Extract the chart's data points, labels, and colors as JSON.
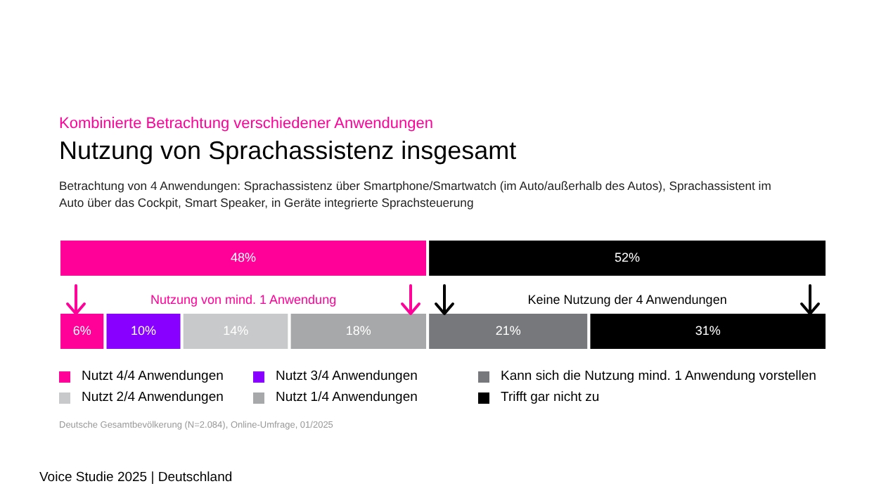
{
  "chart_data": {
    "type": "bar",
    "orientation": "horizontal",
    "stacked": true,
    "subtitle": "Kombinierte Betrachtung verschiedener Anwendungen",
    "title": "Nutzung von Sprachassistenz insgesamt",
    "annotations": [
      "Betrachtung von 4 Anwendungen: Sprachassistenz über Smartphone/Smartwatch (im Auto/außerhalb des Autos), Sprachassistent im Auto über das Cockpit, Smart Speaker, in Geräte integrierte Sprachsteuerung",
      "Nutzung von mind. 1 Anwendung",
      "Keine Nutzung der 4 Anwendungen",
      "Deutsche Gesamtbevölkerung (N=2.084), Online-Umfrage, 01/2025",
      "Voice Studie 2025 | Deutschland"
    ],
    "categories": [
      null,
      null
    ],
    "xlim": [
      0,
      100
    ],
    "tick_labels": false,
    "grid": false,
    "legend": "bottom",
    "series": [
      {
        "color": "#ff0099",
        "values": [
          48,
          null
        ],
        "value_labels": [
          "48%",
          null
        ]
      },
      {
        "color": "#000000",
        "values": [
          52,
          null
        ],
        "value_labels": [
          "52%",
          null
        ]
      },
      {
        "name": "Nutzt 4/4 Anwendungen",
        "color": "#ff0099",
        "values": [
          null,
          6
        ],
        "value_labels": [
          null,
          "6%"
        ]
      },
      {
        "name": "Nutzt 3/4 Anwendungen",
        "color": "#8800ff",
        "values": [
          null,
          10
        ],
        "value_labels": [
          null,
          "10%"
        ]
      },
      {
        "name": "Nutzt 2/4 Anwendungen",
        "color": "#c8c9ca",
        "values": [
          null,
          14
        ],
        "value_labels": [
          null,
          "14%"
        ]
      },
      {
        "name": "Nutzt 1/4 Anwendungen",
        "color": "#a7a8a9",
        "values": [
          null,
          18
        ],
        "value_labels": [
          null,
          "18%"
        ]
      },
      {
        "name": "Kann sich die Nutzung mind. 1 Anwendung vorstellen",
        "color": "#77787b",
        "values": [
          null,
          21
        ],
        "value_labels": [
          null,
          "21%"
        ]
      },
      {
        "name": "Trifft gar nicht zu",
        "color": "#000000",
        "values": [
          null,
          31
        ],
        "value_labels": [
          null,
          "31%"
        ]
      }
    ]
  }
}
